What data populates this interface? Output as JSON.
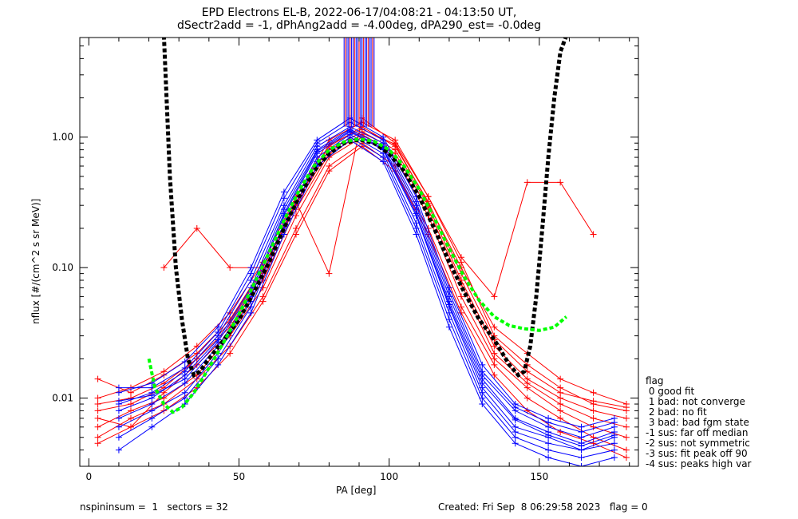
{
  "title_lines": [
    "EPD Electrons EL-B, 2022-06-17/04:08:21 - 04:13:50 UT,",
    "dSectr2add = -1, dPhAng2add = -4.00deg, dPA290_est=  -0.0deg"
  ],
  "footer": {
    "left": "nspininsum =  1   sectors = 32",
    "right": "Created: Fri Sep  8 06:29:58 2023   flag = 0"
  },
  "legend": {
    "title": "flag",
    "items": [
      " 0 good fit",
      " 1 bad: not converge",
      " 2 bad: no fit",
      " 3 bad: bad fgm state",
      "-1 sus: far off median",
      "-2 sus: not symmetric",
      "-3 sus: fit peak off 90",
      "-4 sus: peaks high var"
    ]
  },
  "chart_data": {
    "type": "line",
    "xlabel": "PA [deg]",
    "ylabel": "nflux [#/(cm^2 s sr MeV)]",
    "xlim": [
      -3,
      183
    ],
    "ylim": [
      0.003,
      5.8
    ],
    "yscale": "log",
    "xticks": [
      0,
      50,
      100,
      150
    ],
    "xtick_labels": [
      "0",
      "50",
      "100",
      "150"
    ],
    "yticks": [
      0.01,
      0.1,
      1.0
    ],
    "ytick_labels": [
      "0.01",
      "0.10",
      "1.00"
    ],
    "colors": {
      "red": "#ff0000",
      "blue": "#0000ff",
      "black_fit": "#000000",
      "green_fit": "#00ff00"
    },
    "marker": "+",
    "red_sweeps": [
      {
        "x": [
          3,
          14,
          25,
          36,
          47,
          58,
          69,
          80,
          91,
          102,
          113,
          124,
          135,
          146,
          157,
          168,
          179
        ],
        "y": [
          0.008,
          0.009,
          0.012,
          0.02,
          0.035,
          0.09,
          0.3,
          0.8,
          1.1,
          0.8,
          0.3,
          0.08,
          0.025,
          0.014,
          0.01,
          0.008,
          0.007
        ]
      },
      {
        "x": [
          3,
          14,
          25,
          36,
          47,
          58,
          69,
          80,
          91,
          102,
          113,
          124,
          135,
          146,
          157,
          168,
          179
        ],
        "y": [
          0.006,
          0.008,
          0.01,
          0.015,
          0.03,
          0.07,
          0.25,
          0.7,
          1.0,
          0.7,
          0.25,
          0.06,
          0.02,
          0.012,
          0.008,
          0.006,
          0.005
        ]
      },
      {
        "x": [
          3,
          14,
          25,
          36,
          47,
          58,
          69,
          80,
          91,
          102,
          113,
          124,
          135,
          146,
          157,
          168,
          179
        ],
        "y": [
          0.01,
          0.012,
          0.016,
          0.025,
          0.045,
          0.11,
          0.35,
          0.95,
          1.3,
          0.95,
          0.35,
          0.11,
          0.03,
          0.018,
          0.012,
          0.009,
          0.008
        ]
      },
      {
        "x": [
          3,
          14,
          25,
          36,
          47,
          58,
          69,
          80,
          91,
          102,
          113,
          124,
          135,
          146,
          157,
          168,
          179
        ],
        "y": [
          0.005,
          0.007,
          0.009,
          0.014,
          0.025,
          0.06,
          0.2,
          0.6,
          0.9,
          0.6,
          0.2,
          0.05,
          0.018,
          0.01,
          0.007,
          0.005,
          0.004
        ]
      },
      {
        "x": [
          3,
          14,
          25,
          36,
          47,
          58,
          69,
          80,
          91,
          102,
          113,
          124,
          135,
          146,
          157,
          168,
          179
        ],
        "y": [
          0.014,
          0.011,
          0.015,
          0.022,
          0.04,
          0.1,
          0.32,
          0.85,
          1.2,
          0.85,
          0.32,
          0.09,
          0.028,
          0.016,
          0.011,
          0.0095,
          0.0085
        ]
      },
      {
        "x": [
          3,
          14,
          25,
          36,
          47,
          58,
          69,
          80,
          91,
          102,
          113,
          124,
          135,
          146,
          157,
          168,
          179
        ],
        "y": [
          0.007,
          0.006,
          0.011,
          0.018,
          0.032,
          0.08,
          0.28,
          0.75,
          1.05,
          0.75,
          0.28,
          0.075,
          0.022,
          0.013,
          0.009,
          0.007,
          0.006
        ]
      },
      {
        "x": [
          25,
          36,
          47,
          58,
          69,
          80,
          91,
          102,
          113,
          124,
          135,
          146,
          157,
          168
        ],
        "y": [
          0.1,
          0.2,
          0.1,
          0.1,
          0.32,
          0.09,
          1.4,
          0.9,
          0.35,
          0.12,
          0.06,
          0.45,
          0.45,
          0.18
        ]
      },
      {
        "x": [
          3,
          14,
          25,
          36,
          47,
          58,
          69,
          80,
          91,
          102,
          113,
          124,
          135,
          146,
          157,
          168,
          179
        ],
        "y": [
          0.009,
          0.01,
          0.013,
          0.02,
          0.038,
          0.095,
          0.31,
          0.88,
          1.15,
          0.88,
          0.31,
          0.1,
          0.035,
          0.022,
          0.014,
          0.011,
          0.009
        ]
      },
      {
        "x": [
          3,
          14,
          25,
          36,
          47,
          58,
          69,
          80,
          91,
          102,
          113,
          124,
          135,
          146,
          157,
          168,
          179
        ],
        "y": [
          0.0045,
          0.006,
          0.008,
          0.012,
          0.022,
          0.055,
          0.18,
          0.55,
          0.85,
          0.55,
          0.18,
          0.045,
          0.015,
          0.008,
          0.0055,
          0.0045,
          0.0035
        ]
      }
    ],
    "blue_sweeps": [
      {
        "x": [
          10,
          21,
          32,
          43,
          54,
          65,
          76,
          87,
          98,
          109,
          120,
          131,
          142,
          153,
          164,
          175
        ],
        "y": [
          0.009,
          0.011,
          0.016,
          0.03,
          0.08,
          0.3,
          0.85,
          1.2,
          0.9,
          0.3,
          0.06,
          0.015,
          0.008,
          0.006,
          0.005,
          0.006
        ]
      },
      {
        "x": [
          10,
          21,
          32,
          43,
          54,
          65,
          76,
          87,
          98,
          109,
          120,
          131,
          142,
          153,
          164,
          175
        ],
        "y": [
          0.007,
          0.009,
          0.013,
          0.025,
          0.06,
          0.25,
          0.75,
          1.1,
          0.8,
          0.25,
          0.05,
          0.012,
          0.006,
          0.005,
          0.004,
          0.005
        ]
      },
      {
        "x": [
          10,
          21,
          32,
          43,
          54,
          65,
          76,
          87,
          98,
          109,
          120,
          131,
          142,
          153,
          164,
          175
        ],
        "y": [
          0.011,
          0.013,
          0.019,
          0.035,
          0.1,
          0.38,
          0.95,
          1.4,
          1.0,
          0.35,
          0.07,
          0.018,
          0.009,
          0.007,
          0.006,
          0.007
        ]
      },
      {
        "x": [
          10,
          21,
          32,
          43,
          54,
          65,
          76,
          87,
          98,
          109,
          120,
          131,
          142,
          153,
          164,
          175
        ],
        "y": [
          0.005,
          0.007,
          0.01,
          0.02,
          0.05,
          0.2,
          0.65,
          1.0,
          0.7,
          0.2,
          0.04,
          0.01,
          0.005,
          0.004,
          0.0035,
          0.004
        ]
      },
      {
        "x": [
          10,
          21,
          32,
          43,
          54,
          65,
          76,
          87,
          98,
          109,
          120,
          131,
          142,
          153,
          164,
          175
        ],
        "y": [
          0.008,
          0.01,
          0.015,
          0.028,
          0.07,
          0.28,
          0.8,
          1.15,
          0.85,
          0.28,
          0.055,
          0.014,
          0.007,
          0.0055,
          0.0045,
          0.0055
        ]
      },
      {
        "x": [
          10,
          21,
          32,
          43,
          54,
          65,
          76,
          87,
          98,
          109,
          120,
          131,
          142,
          153,
          164,
          175
        ],
        "y": [
          0.012,
          0.012,
          0.017,
          0.032,
          0.09,
          0.34,
          0.9,
          1.3,
          0.95,
          0.32,
          0.065,
          0.016,
          0.0085,
          0.0065,
          0.0055,
          0.0065
        ]
      },
      {
        "x": [
          10,
          21,
          32,
          43,
          54,
          65,
          76,
          87,
          98,
          109,
          120,
          131,
          142,
          153,
          164,
          175
        ],
        "y": [
          0.006,
          0.008,
          0.011,
          0.022,
          0.055,
          0.22,
          0.7,
          1.05,
          0.75,
          0.22,
          0.045,
          0.011,
          0.0055,
          0.0045,
          0.004,
          0.0045
        ]
      },
      {
        "x": [
          10,
          21,
          32,
          43,
          54,
          65,
          76,
          87,
          98,
          109,
          120,
          131,
          142,
          153,
          164,
          175
        ],
        "y": [
          0.0095,
          0.0105,
          0.014,
          0.027,
          0.065,
          0.26,
          0.78,
          1.12,
          0.82,
          0.26,
          0.052,
          0.013,
          0.0068,
          0.0052,
          0.0043,
          0.0052
        ]
      },
      {
        "x": [
          10,
          21,
          32,
          43,
          54,
          65,
          76,
          87,
          98,
          109,
          120,
          131,
          142,
          153,
          164,
          175
        ],
        "y": [
          0.004,
          0.006,
          0.009,
          0.018,
          0.045,
          0.18,
          0.6,
          0.95,
          0.65,
          0.18,
          0.035,
          0.009,
          0.0045,
          0.0035,
          0.003,
          0.0035
        ]
      }
    ],
    "black_fit": {
      "x": [
        25,
        27,
        29,
        31,
        33,
        35,
        37,
        40,
        45,
        50,
        55,
        60,
        65,
        70,
        75,
        80,
        85,
        90,
        95,
        100,
        105,
        110,
        115,
        120,
        125,
        130,
        135,
        140,
        143,
        145,
        147,
        149,
        151,
        153,
        155,
        157,
        159
      ],
      "y": [
        6.0,
        0.5,
        0.1,
        0.04,
        0.02,
        0.015,
        0.016,
        0.02,
        0.028,
        0.04,
        0.065,
        0.11,
        0.2,
        0.35,
        0.55,
        0.75,
        0.9,
        0.96,
        0.9,
        0.75,
        0.55,
        0.35,
        0.2,
        0.11,
        0.065,
        0.04,
        0.028,
        0.018,
        0.015,
        0.016,
        0.025,
        0.06,
        0.2,
        0.7,
        2.0,
        4.5,
        6.0
      ]
    },
    "green_fit": {
      "x": [
        20,
        22,
        25,
        28,
        31,
        35,
        40,
        45,
        50,
        55,
        60,
        65,
        70,
        75,
        80,
        85,
        90,
        95,
        100,
        105,
        110,
        115,
        120,
        125,
        130,
        135,
        140,
        145,
        150,
        155,
        159
      ],
      "y": [
        0.02,
        0.012,
        0.009,
        0.0078,
        0.0085,
        0.011,
        0.017,
        0.027,
        0.044,
        0.075,
        0.13,
        0.23,
        0.39,
        0.6,
        0.8,
        0.92,
        0.97,
        0.93,
        0.8,
        0.6,
        0.4,
        0.24,
        0.14,
        0.085,
        0.056,
        0.042,
        0.036,
        0.034,
        0.033,
        0.035,
        0.042
      ]
    },
    "peak_spikes": {
      "x_range": [
        85,
        95
      ],
      "y_top": 5.8,
      "y_bottom": 1.2
    }
  }
}
